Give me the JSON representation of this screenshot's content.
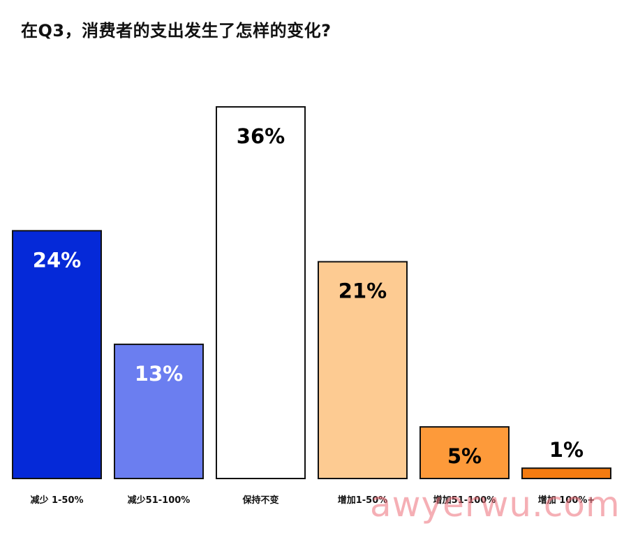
{
  "chart_data": {
    "type": "bar",
    "title": "在Q3，消费者的支出发生了怎样的变化?",
    "categories": [
      "减少 1-50%",
      "减少51-100%",
      "保持不变",
      "增加1-50%",
      "增加51-100%",
      "增加 100%+"
    ],
    "values": [
      24,
      13,
      36,
      21,
      5,
      1
    ],
    "value_labels": [
      "24%",
      "13%",
      "36%",
      "21%",
      "5%",
      "1%"
    ],
    "bar_colors": [
      "#0529d8",
      "#6b7ef0",
      "#ffffff",
      "#fdcb92",
      "#fd9a3a",
      "#f47b10"
    ],
    "label_colors": [
      "#ffffff",
      "#ffffff",
      "#000000",
      "#000000",
      "#000000",
      "#000000"
    ],
    "xlabel": "",
    "ylabel": "",
    "ylim": [
      0,
      36
    ],
    "grid": false,
    "legend": "none"
  },
  "watermark": "awyerwu.com"
}
